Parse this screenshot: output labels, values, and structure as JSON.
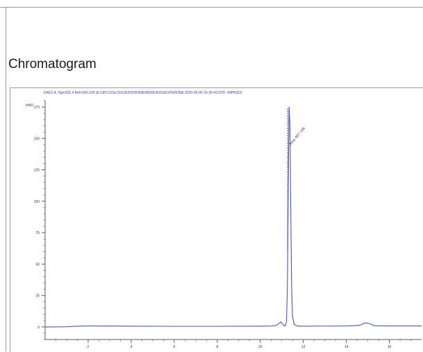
{
  "section_title": "Chromatogram",
  "colors": {
    "trace": "#4a55b4",
    "axis": "#5a5a5a",
    "header_text": "#3a3ad0",
    "frame": "#9a9a9a"
  },
  "chart_data": {
    "type": "line",
    "title": "",
    "header_text": "DAD1 A, Sig=201,4 Ref=360,100 (E:\\UPLC\\Da DOU\\ESTERONE\\MODU\\DOUESTERONE 2020-05-06 16-35-41\\STD. IMPRSD)",
    "ylabel_unit": "mAU",
    "xlabel": "",
    "xlim": [
      0,
      17.5
    ],
    "ylim": [
      -10,
      180
    ],
    "yticks": [
      0,
      25,
      50,
      75,
      100,
      125,
      150,
      175
    ],
    "xticks": [
      2,
      4,
      6,
      8,
      10,
      12,
      14,
      16
    ],
    "xtick_labels": [
      "2",
      "4",
      "6",
      "8",
      "10",
      "12",
      "14",
      "16"
    ],
    "grid": false,
    "series": [
      {
        "x": [
          0.0,
          1.0,
          1.5,
          2.0,
          4.0,
          6.0,
          8.0,
          10.0,
          10.5,
          10.75,
          10.85,
          10.95,
          11.05,
          11.15,
          11.22,
          11.26,
          11.3,
          11.34,
          11.38,
          11.42,
          11.46,
          11.5,
          11.58,
          11.7,
          11.85,
          12.0,
          13.0,
          14.0,
          14.6,
          14.8,
          14.95,
          15.1,
          15.3,
          16.0,
          17.0,
          17.5
        ],
        "y": [
          0.0,
          0.1,
          0.6,
          0.8,
          0.6,
          0.5,
          0.5,
          0.6,
          0.7,
          1.2,
          2.5,
          4.0,
          2.0,
          0.6,
          4.0,
          30.0,
          110.0,
          175.0,
          160.0,
          90.0,
          30.0,
          8.0,
          2.0,
          0.8,
          0.6,
          0.6,
          0.7,
          0.8,
          1.2,
          2.8,
          3.2,
          2.5,
          1.0,
          0.8,
          0.8,
          0.8
        ]
      }
    ],
    "annotations": [
      {
        "x": 11.34,
        "y": 175,
        "text": "Area 467.196"
      }
    ]
  }
}
